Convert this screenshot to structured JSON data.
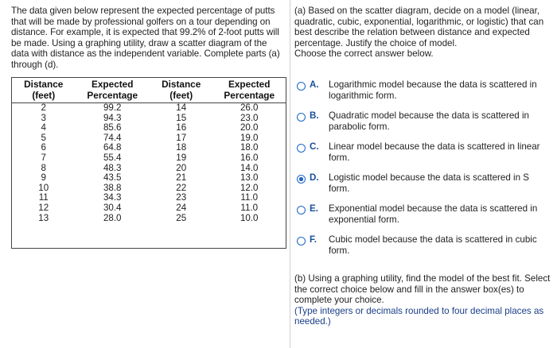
{
  "intro": {
    "text": "The data given below represent the expected percentage of putts that will be made by professional golfers on a tour depending on distance. For example, it is expected that 99.2% of 2-foot putts will be made. Using a graphing utility, draw a scatter diagram of the data with distance as the independent variable. Complete parts (a) through (d)."
  },
  "table": {
    "headers": {
      "distance1": "Distance (feet)",
      "expected1": "Expected Percentage",
      "distance2": "Distance (feet)",
      "expected2": "Expected Percentage"
    },
    "rows": [
      [
        "2",
        "99.2",
        "14",
        "26.0"
      ],
      [
        "3",
        "94.3",
        "15",
        "23.0"
      ],
      [
        "4",
        "85.6",
        "16",
        "20.0"
      ],
      [
        "5",
        "74.4",
        "17",
        "19.0"
      ],
      [
        "6",
        "64.8",
        "18",
        "18.0"
      ],
      [
        "7",
        "55.4",
        "19",
        "16.0"
      ],
      [
        "8",
        "48.3",
        "20",
        "14.0"
      ],
      [
        "9",
        "43.5",
        "21",
        "13.0"
      ],
      [
        "10",
        "38.8",
        "22",
        "12.0"
      ],
      [
        "11",
        "34.3",
        "23",
        "11.0"
      ],
      [
        "12",
        "30.4",
        "24",
        "11.0"
      ],
      [
        "13",
        "28.0",
        "25",
        "10.0"
      ]
    ]
  },
  "part_a": {
    "question": "(a) Based on the scatter diagram, decide on a model (linear, quadratic, cubic, exponential, logarithmic, or logistic) that can best describe the relation between distance and expected percentage. Justify the choice of model.",
    "instruction": "Choose the correct answer below.",
    "options": [
      {
        "letter": "A.",
        "text": "Logarithmic model because the data is scattered in logarithmic form.",
        "selected": false
      },
      {
        "letter": "B.",
        "text": "Quadratic model because the data is scattered in parabolic form.",
        "selected": false
      },
      {
        "letter": "C.",
        "text": "Linear model because the data is scattered in linear form.",
        "selected": false
      },
      {
        "letter": "D.",
        "text": "Logistic model because the data is scattered in S form.",
        "selected": true
      },
      {
        "letter": "E.",
        "text": "Exponential model because the data is scattered in exponential form.",
        "selected": false
      },
      {
        "letter": "F.",
        "text": "Cubic model because the data is scattered in cubic form.",
        "selected": false
      }
    ]
  },
  "part_b": {
    "question": "(b) Using a graphing utility, find the model of the best fit. Select the correct choice below and fill in the answer box(es) to complete your choice.",
    "note": "(Type integers or decimals rounded to four decimal places as needed.)"
  },
  "colors": {
    "accent": "#1a64c8",
    "option_letter": "#1a4f9a",
    "note_text": "#1a3f8a"
  }
}
